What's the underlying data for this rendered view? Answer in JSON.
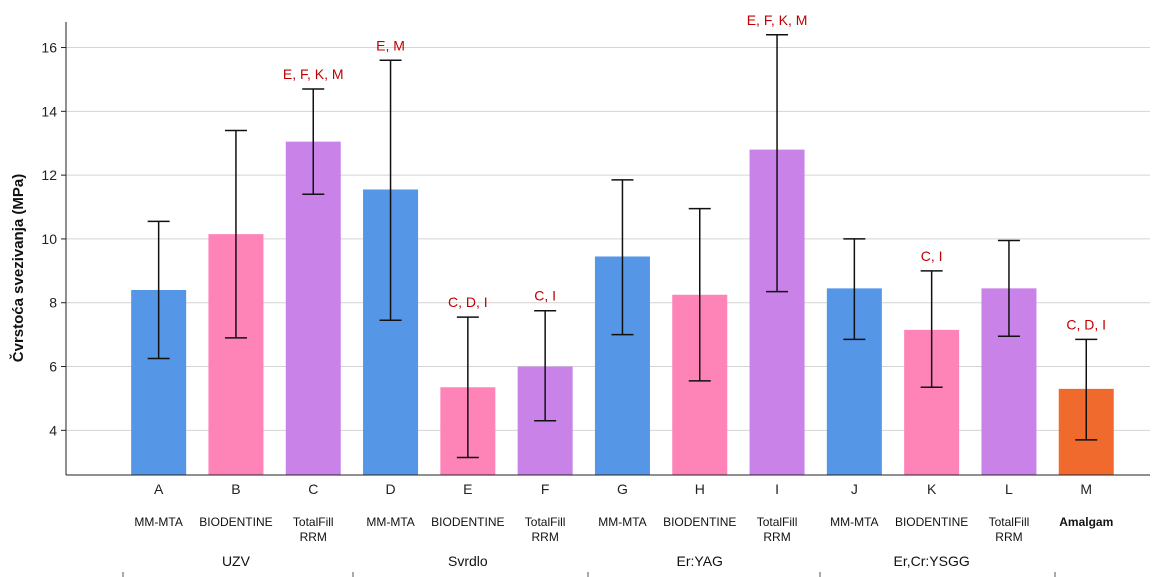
{
  "chart_data": {
    "type": "bar",
    "ylabel": "Čvrstoća svezivanja (MPa)",
    "ylim": [
      2.6,
      16.8
    ],
    "yticks": [
      4,
      6,
      8,
      10,
      12,
      14,
      16
    ],
    "grid": true,
    "categories": [
      "A",
      "B",
      "C",
      "D",
      "E",
      "F",
      "G",
      "H",
      "I",
      "J",
      "K",
      "L",
      "M"
    ],
    "materials": [
      [
        "MM-MTA"
      ],
      [
        "BIODENTINE"
      ],
      [
        "TotalFill",
        "RRM"
      ],
      [
        "MM-MTA"
      ],
      [
        "BIODENTINE"
      ],
      [
        "TotalFill",
        "RRM"
      ],
      [
        "MM-MTA"
      ],
      [
        "BIODENTINE"
      ],
      [
        "TotalFill",
        "RRM"
      ],
      [
        "MM-MTA"
      ],
      [
        "BIODENTINE"
      ],
      [
        "TotalFill",
        "RRM"
      ],
      [
        "Amalgam"
      ]
    ],
    "groups": [
      "UZV",
      "Svrdlo",
      "Er:YAG",
      "Er,Cr:YSGG"
    ],
    "values": [
      8.4,
      10.15,
      13.05,
      11.55,
      5.35,
      6.0,
      9.45,
      8.25,
      12.8,
      8.45,
      7.15,
      8.45,
      5.3
    ],
    "error_low": [
      6.25,
      6.9,
      11.4,
      7.45,
      3.15,
      4.3,
      7.0,
      5.55,
      8.35,
      6.85,
      5.35,
      6.95,
      3.7
    ],
    "error_high": [
      10.55,
      13.4,
      14.7,
      15.6,
      7.55,
      7.75,
      11.85,
      10.95,
      16.4,
      10.0,
      9.0,
      9.95,
      6.85
    ],
    "significance": [
      "",
      "",
      "E, F, K, M",
      "E, M",
      "C, D, I",
      "C, I",
      "",
      "",
      "E, F, K, M",
      "",
      "C, I",
      "",
      "C, D, I"
    ],
    "colors": {
      "mm_mta": "#5596e6",
      "biodentine": "#fe83b7",
      "totalfill": "#c882e8",
      "amalgam": "#f06a2d",
      "significance_text": "#c00000",
      "amalgam_label": "#1f3a80"
    },
    "bar_color_keys": [
      "mm_mta",
      "biodentine",
      "totalfill",
      "mm_mta",
      "biodentine",
      "totalfill",
      "mm_mta",
      "biodentine",
      "totalfill",
      "mm_mta",
      "biodentine",
      "totalfill",
      "amalgam"
    ]
  }
}
